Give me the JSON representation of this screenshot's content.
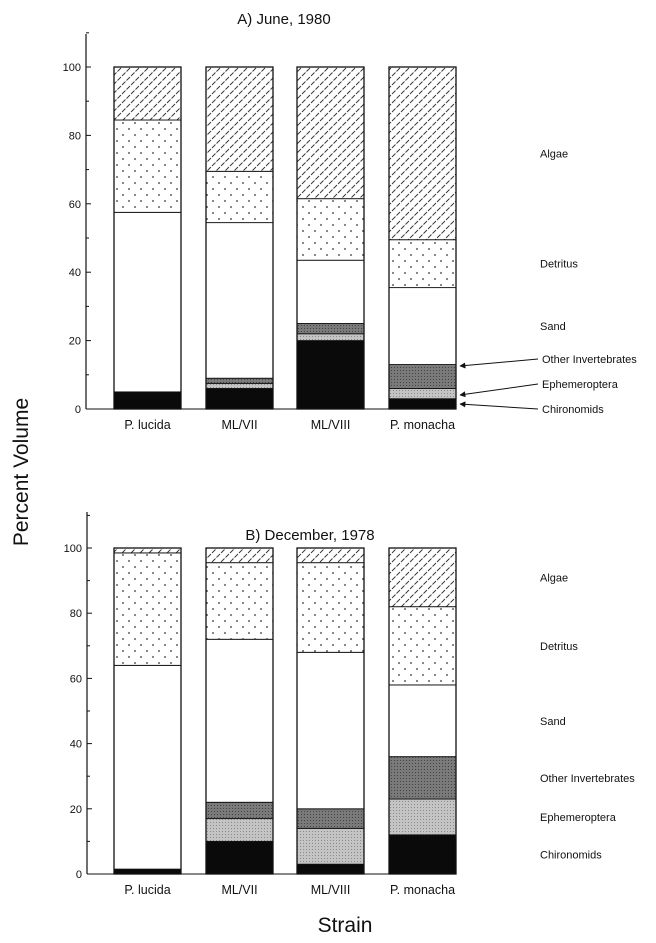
{
  "figure": {
    "ylabel": "Percent Volume",
    "xlabel": "Strain"
  },
  "chart_data": [
    {
      "type": "bar",
      "stacked": true,
      "title": "A) June, 1980",
      "categories": [
        "P.  lucida",
        "ML/VII",
        "ML/VIII",
        "P. monacha"
      ],
      "ylim": [
        0,
        110
      ],
      "yticks": [
        0,
        20,
        40,
        60,
        80,
        100
      ],
      "grid": false,
      "legend": "right",
      "series": [
        {
          "name": "Chironomids",
          "values": [
            5,
            6,
            20,
            3
          ]
        },
        {
          "name": "Ephemeroptera",
          "values": [
            0,
            1.5,
            2,
            3
          ]
        },
        {
          "name": "Other Invertebrates",
          "values": [
            0,
            1.5,
            3,
            7
          ]
        },
        {
          "name": "Sand",
          "values": [
            52.5,
            45.5,
            18.5,
            22.5
          ]
        },
        {
          "name": "Detritus",
          "values": [
            27,
            15,
            18,
            14
          ]
        },
        {
          "name": "Algae",
          "values": [
            15.5,
            30.5,
            38.5,
            50.5
          ]
        }
      ],
      "arrow_labels": [
        "Other Invertebrates",
        "Ephemeroptera",
        "Chironomids"
      ]
    },
    {
      "type": "bar",
      "stacked": true,
      "title": "B) December, 1978",
      "categories": [
        "P.  lucida",
        "ML/VII",
        "ML/VIII",
        "P. monacha"
      ],
      "ylim": [
        0,
        110
      ],
      "yticks": [
        0,
        20,
        40,
        60,
        80,
        100
      ],
      "grid": false,
      "legend": "right",
      "series": [
        {
          "name": "Chironomids",
          "values": [
            1.5,
            10,
            3,
            12
          ]
        },
        {
          "name": "Ephemeroptera",
          "values": [
            0,
            7,
            11,
            11
          ]
        },
        {
          "name": "Other Invertebrates",
          "values": [
            0,
            5,
            6,
            13
          ]
        },
        {
          "name": "Sand",
          "values": [
            62.5,
            50,
            48,
            22
          ]
        },
        {
          "name": "Detritus",
          "values": [
            34.5,
            23.5,
            27.5,
            24
          ]
        },
        {
          "name": "Algae",
          "values": [
            1.5,
            4.5,
            4.5,
            18
          ]
        }
      ],
      "arrow_labels": []
    }
  ],
  "colors": {
    "Chironomids": "#0a0a0a",
    "Ephemeroptera": "#bdbdbd",
    "Other Invertebrates": "#6e6e6e",
    "Sand": "#ffffff",
    "Detritus": "#ffffff",
    "Algae": "#ffffff"
  }
}
